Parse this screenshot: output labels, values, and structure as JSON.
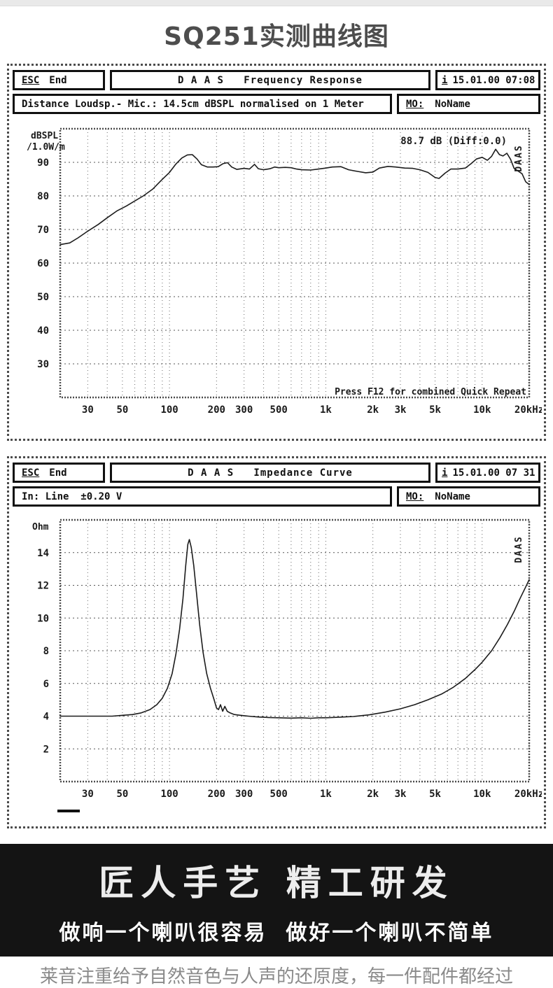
{
  "page": {
    "title": "SQ251实测曲线图"
  },
  "windows": [
    {
      "esc_key": "ESC",
      "esc_label": "End",
      "title": "D A A S   Frequency Response",
      "info_key": "i",
      "timestamp": "15.01.00 07:08",
      "subtitle": "Distance Loudsp.- Mic.: 14.5cm dBSPL normalised on 1 Meter",
      "mo_label": "MO:",
      "mo_value": "NoName"
    },
    {
      "esc_key": "ESC",
      "esc_label": "End",
      "title": "D A A S   Impedance Curve",
      "info_key": "i",
      "timestamp": "15.01.00 07 31",
      "subtitle": "In: Line  ±0.20 V",
      "mo_label": "MO:",
      "mo_value": "NoName"
    }
  ],
  "chart_data": [
    {
      "type": "line",
      "title": "DAAS Frequency Response",
      "ylabel_line1": "dBSPL",
      "ylabel_line2": "/1.0W/m",
      "x_scale": "log",
      "xlim": [
        20,
        20000
      ],
      "ylim": [
        20,
        100
      ],
      "yticks": [
        30,
        40,
        50,
        60,
        70,
        80,
        90
      ],
      "xticks": [
        [
          30,
          "30"
        ],
        [
          50,
          "50"
        ],
        [
          100,
          "100"
        ],
        [
          200,
          "200"
        ],
        [
          300,
          "300"
        ],
        [
          500,
          "500"
        ],
        [
          1000,
          "1k"
        ],
        [
          2000,
          "2k"
        ],
        [
          3000,
          "3k"
        ],
        [
          5000,
          "5k"
        ],
        [
          10000,
          "10k"
        ],
        [
          20000,
          "20kHz"
        ]
      ],
      "grid": "dotted",
      "annotations": {
        "sensitivity": "88.7 dB (Diff:0.0)",
        "hint": "Press F12 for combined Quick Repeat",
        "logo": "DAAS"
      },
      "points": [
        [
          20,
          65.5
        ],
        [
          23,
          66
        ],
        [
          26,
          67.5
        ],
        [
          30,
          69.5
        ],
        [
          35,
          71.5
        ],
        [
          40,
          73.5
        ],
        [
          46,
          75.5
        ],
        [
          53,
          77
        ],
        [
          60,
          78.5
        ],
        [
          68,
          80
        ],
        [
          78,
          82
        ],
        [
          88,
          84.5
        ],
        [
          100,
          87
        ],
        [
          110,
          89.5
        ],
        [
          120,
          91.3
        ],
        [
          130,
          92.2
        ],
        [
          140,
          92.3
        ],
        [
          150,
          91
        ],
        [
          160,
          89.3
        ],
        [
          175,
          88.6
        ],
        [
          190,
          88.6
        ],
        [
          205,
          88.7
        ],
        [
          220,
          89.6
        ],
        [
          235,
          89.9
        ],
        [
          250,
          88.6
        ],
        [
          270,
          87.9
        ],
        [
          300,
          88.2
        ],
        [
          325,
          88.0
        ],
        [
          350,
          89.4
        ],
        [
          370,
          88.1
        ],
        [
          400,
          87.8
        ],
        [
          440,
          88.1
        ],
        [
          470,
          88.6
        ],
        [
          500,
          88.4
        ],
        [
          550,
          88.5
        ],
        [
          600,
          88.4
        ],
        [
          650,
          88.0
        ],
        [
          700,
          87.8
        ],
        [
          800,
          87.7
        ],
        [
          900,
          88.0
        ],
        [
          1000,
          88.3
        ],
        [
          1100,
          88.6
        ],
        [
          1250,
          88.7
        ],
        [
          1400,
          87.8
        ],
        [
          1600,
          87.3
        ],
        [
          1800,
          86.9
        ],
        [
          2000,
          87.1
        ],
        [
          2200,
          88.3
        ],
        [
          2500,
          88.8
        ],
        [
          2800,
          88.6
        ],
        [
          3200,
          88.3
        ],
        [
          3600,
          88.2
        ],
        [
          4000,
          87.8
        ],
        [
          4500,
          87.0
        ],
        [
          5000,
          85.5
        ],
        [
          5300,
          85.2
        ],
        [
          5800,
          86.8
        ],
        [
          6300,
          88.0
        ],
        [
          7000,
          88.0
        ],
        [
          7800,
          88.3
        ],
        [
          8500,
          89.6
        ],
        [
          9200,
          91.0
        ],
        [
          10000,
          91.5
        ],
        [
          10800,
          90.6
        ],
        [
          11500,
          91.8
        ],
        [
          12200,
          93.9
        ],
        [
          12900,
          92.3
        ],
        [
          13600,
          91.9
        ],
        [
          14400,
          92.7
        ],
        [
          15200,
          90.9
        ],
        [
          16000,
          88.2
        ],
        [
          17000,
          87.4
        ],
        [
          18000,
          86.6
        ],
        [
          19000,
          84.2
        ],
        [
          20000,
          83.4
        ]
      ]
    },
    {
      "type": "line",
      "title": "DAAS Impedance Curve",
      "ylabel_line1": "Ohm",
      "ylabel_line2": "",
      "x_scale": "log",
      "xlim": [
        20,
        20000
      ],
      "ylim": [
        0,
        16
      ],
      "yticks": [
        2,
        4,
        6,
        8,
        10,
        12,
        14
      ],
      "xticks": [
        [
          30,
          "30"
        ],
        [
          50,
          "50"
        ],
        [
          100,
          "100"
        ],
        [
          200,
          "200"
        ],
        [
          300,
          "300"
        ],
        [
          500,
          "500"
        ],
        [
          1000,
          "1k"
        ],
        [
          2000,
          "2k"
        ],
        [
          3000,
          "3k"
        ],
        [
          5000,
          "5k"
        ],
        [
          10000,
          "10k"
        ],
        [
          20000,
          "20kHz"
        ]
      ],
      "grid": "dotted",
      "annotations": {
        "sensitivity": "",
        "hint": "",
        "logo": "DAAS"
      },
      "points": [
        [
          20,
          4.0
        ],
        [
          25,
          4.0
        ],
        [
          30,
          4.0
        ],
        [
          36,
          4.0
        ],
        [
          43,
          4.0
        ],
        [
          50,
          4.05
        ],
        [
          58,
          4.1
        ],
        [
          66,
          4.2
        ],
        [
          75,
          4.4
        ],
        [
          83,
          4.7
        ],
        [
          90,
          5.1
        ],
        [
          97,
          5.7
        ],
        [
          104,
          6.6
        ],
        [
          110,
          7.8
        ],
        [
          116,
          9.3
        ],
        [
          122,
          11.2
        ],
        [
          127,
          13.2
        ],
        [
          131,
          14.5
        ],
        [
          134,
          14.8
        ],
        [
          138,
          14.3
        ],
        [
          143,
          13.2
        ],
        [
          149,
          11.5
        ],
        [
          156,
          9.6
        ],
        [
          164,
          7.9
        ],
        [
          173,
          6.6
        ],
        [
          183,
          5.7
        ],
        [
          193,
          5.0
        ],
        [
          200,
          4.5
        ],
        [
          206,
          4.4
        ],
        [
          212,
          4.7
        ],
        [
          219,
          4.3
        ],
        [
          226,
          4.6
        ],
        [
          234,
          4.3
        ],
        [
          244,
          4.2
        ],
        [
          260,
          4.1
        ],
        [
          285,
          4.05
        ],
        [
          320,
          4.0
        ],
        [
          370,
          3.95
        ],
        [
          430,
          3.92
        ],
        [
          500,
          3.9
        ],
        [
          600,
          3.88
        ],
        [
          700,
          3.9
        ],
        [
          800,
          3.87
        ],
        [
          900,
          3.9
        ],
        [
          1000,
          3.9
        ],
        [
          1200,
          3.93
        ],
        [
          1500,
          3.98
        ],
        [
          1900,
          4.08
        ],
        [
          2400,
          4.25
        ],
        [
          3000,
          4.45
        ],
        [
          3700,
          4.7
        ],
        [
          4500,
          5.0
        ],
        [
          5500,
          5.35
        ],
        [
          6500,
          5.75
        ],
        [
          7800,
          6.3
        ],
        [
          9000,
          6.85
        ],
        [
          10000,
          7.3
        ],
        [
          11500,
          8.0
        ],
        [
          13000,
          8.8
        ],
        [
          14500,
          9.6
        ],
        [
          16000,
          10.4
        ],
        [
          17500,
          11.2
        ],
        [
          19000,
          11.9
        ],
        [
          20000,
          12.35
        ]
      ]
    }
  ],
  "banner": {
    "line1": "匠人手艺 精工研发",
    "line2": "做响一个喇叭很容易  做好一个喇叭不简单"
  },
  "footer": {
    "partial_text": "莱音注重给予自然音色与人声的还原度，每一件配件都经过"
  }
}
